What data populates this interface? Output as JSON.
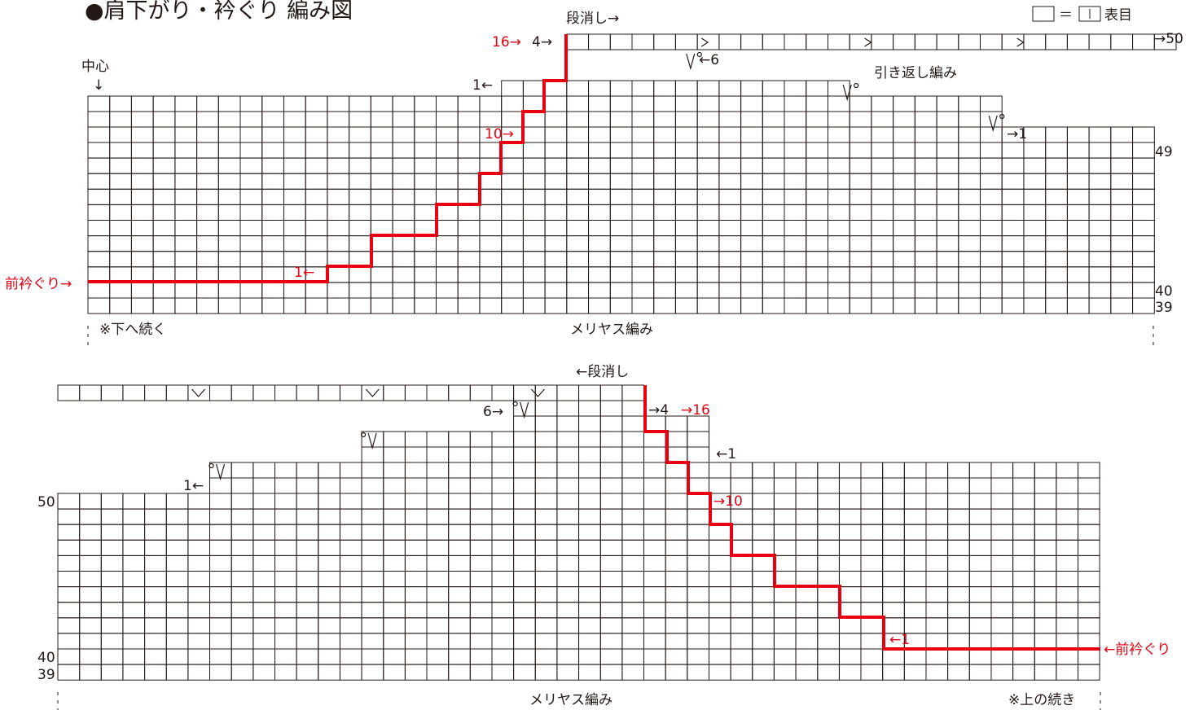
{
  "title": "●肩下がり・衿ぐり 編み図",
  "legend": {
    "eq": "＝",
    "meaning": "表目"
  },
  "top": {
    "center": "中心",
    "center_arrow": "↓",
    "dankeshi": "段消し→",
    "hikikaeshi": "引き返し編み",
    "red_16": "16→",
    "red_10": "10→",
    "red_1": "1←",
    "k_4": "4→",
    "k_1": "1←",
    "k_6": "←6",
    "k_1b": "→1",
    "r50": "→50",
    "r49": "49",
    "r40": "40",
    "r39": "39",
    "neck": "前衿ぐり→",
    "continue": "※下へ続く",
    "stockinette": "メリヤス編み"
  },
  "bottom": {
    "dankeshi": "←段消し",
    "red_16": "→16",
    "red_10": "→10",
    "red_1": "←1",
    "k_4": "→4",
    "k_1": "←1",
    "k_6": "6→",
    "k_1b": "1←",
    "r50": "50",
    "r40": "40",
    "r39": "39",
    "neck": "←前衿ぐり",
    "continue": "※上の続き",
    "stockinette": "メリヤス編み"
  },
  "colors": {
    "ink": "#231815",
    "red": "#e60012"
  },
  "symbols": {
    "slip_decrease": "slipped-stitch-V",
    "k2tog_right": "k2tog-right-slant",
    "k2tog_left": "k2tog-left-slant"
  }
}
